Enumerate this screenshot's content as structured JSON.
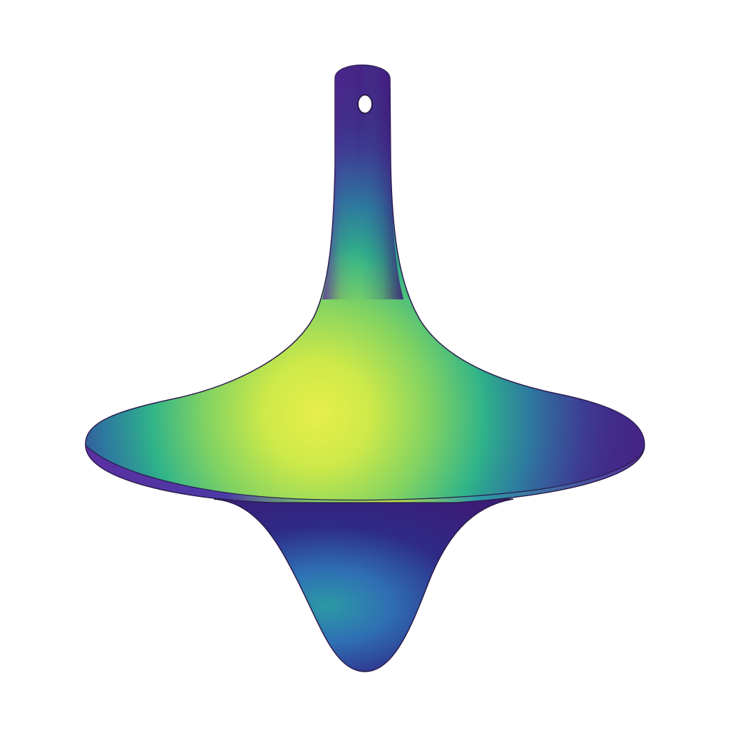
{
  "scene": {
    "subject": "spinning-top",
    "background_color": "#ffffff",
    "outline_color": "#2a1b4a"
  },
  "palette": {
    "deep_purple": "#3b1d78",
    "violet": "#5b2fa0",
    "indigo": "#2e2a86",
    "blue": "#2f6fb4",
    "teal": "#2c9aa6",
    "green": "#5cc86a",
    "lime": "#b7e04a",
    "yellow": "#e7ef4c",
    "hole_fill": "#ffffff"
  }
}
